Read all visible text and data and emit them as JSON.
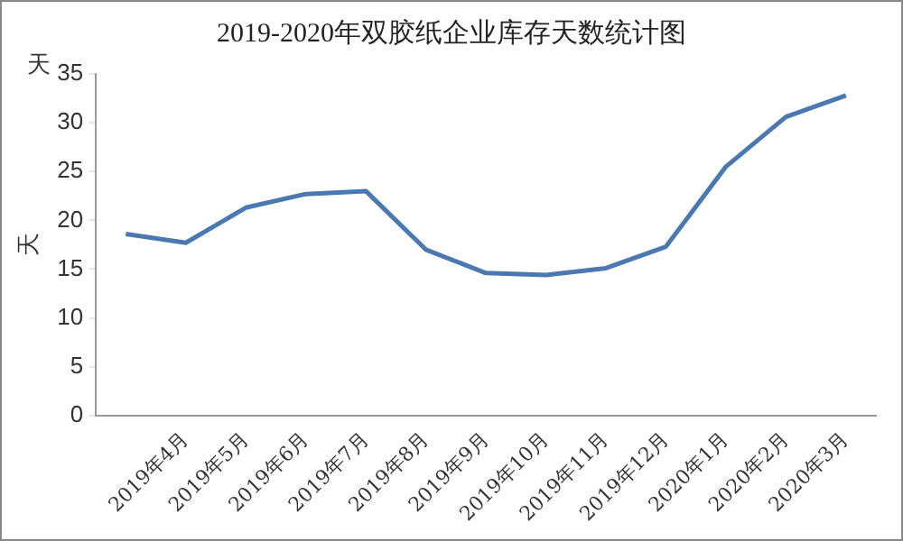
{
  "chart_data": {
    "type": "line",
    "title": "2019-2020年双胶纸企业库存天数统计图",
    "ylabel": "天",
    "annotations": [
      "天"
    ],
    "categories": [
      null,
      "2019年4月",
      "2019年5月",
      "2019年6月",
      "2019年7月",
      "2019年8月",
      "2019年9月",
      "2019年10月",
      "2019年11月",
      "2019年12月",
      "2020年1月",
      "2020年2月",
      "2020年3月"
    ],
    "series": [
      {
        "color": "#4a78b0",
        "values": [
          18.6,
          17.7,
          21.3,
          22.7,
          23.0,
          17.0,
          14.6,
          14.4,
          15.1,
          17.3,
          25.5,
          30.6,
          32.8
        ]
      }
    ],
    "ylim": [
      0,
      35
    ],
    "yticks": [
      0,
      5,
      10,
      15,
      20,
      25,
      30,
      35
    ],
    "grid": false,
    "legend": false,
    "marker": "none",
    "line_style": "solid"
  }
}
